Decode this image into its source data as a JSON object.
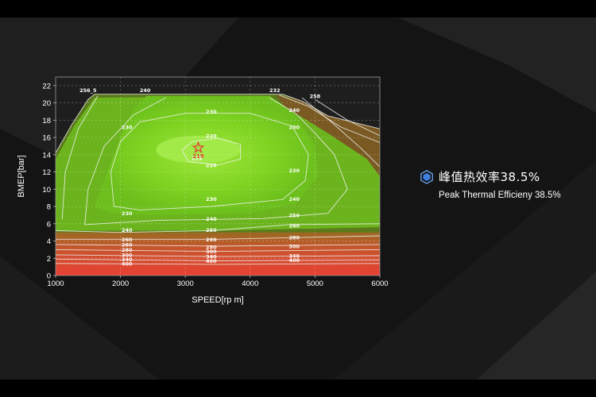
{
  "caption": {
    "title_zh": "峰值热效率38.5%",
    "title_en": "Peak Thermal Efficieny 38.5%",
    "icon": "hexagon-icon",
    "icon_color": "#3f7fe0"
  },
  "chart_data": {
    "type": "contour",
    "xlabel": "SPEED[rp m]",
    "ylabel": "BMEP[bar]",
    "xlim": [
      1000,
      6000
    ],
    "ylim": [
      0,
      23
    ],
    "x_ticks": [
      1000,
      2000,
      3000,
      4000,
      5000,
      6000
    ],
    "y_ticks": [
      0,
      2,
      4,
      6,
      8,
      10,
      12,
      14,
      16,
      18,
      20,
      22
    ],
    "grid": true,
    "peak": {
      "speed": 3200,
      "bmep": 14.8,
      "value": "219",
      "marker": "star-icon"
    },
    "contour_values": [
      219,
      220,
      230,
      240,
      250,
      256,
      258,
      260,
      280,
      300,
      340,
      400
    ],
    "contour_labels": [
      {
        "text": "256_5",
        "x": 1500,
        "y": 21.5
      },
      {
        "text": "240",
        "x": 2380,
        "y": 21.5
      },
      {
        "text": "232",
        "x": 4380,
        "y": 21.5
      },
      {
        "text": "258",
        "x": 5000,
        "y": 20.8
      },
      {
        "text": "240",
        "x": 4680,
        "y": 19.2
      },
      {
        "text": "230",
        "x": 2100,
        "y": 17.2
      },
      {
        "text": "230",
        "x": 3400,
        "y": 19.0
      },
      {
        "text": "230",
        "x": 4680,
        "y": 17.2
      },
      {
        "text": "220",
        "x": 3400,
        "y": 16.2
      },
      {
        "text": "219",
        "x": 3180,
        "y": 13.6
      },
      {
        "text": "220",
        "x": 3400,
        "y": 12.8
      },
      {
        "text": "230",
        "x": 4680,
        "y": 12.2
      },
      {
        "text": "230",
        "x": 3400,
        "y": 8.9
      },
      {
        "text": "240",
        "x": 4680,
        "y": 8.9
      },
      {
        "text": "230",
        "x": 2100,
        "y": 7.2
      },
      {
        "text": "240",
        "x": 3400,
        "y": 6.6
      },
      {
        "text": "250",
        "x": 4680,
        "y": 7.0
      },
      {
        "text": "240",
        "x": 2100,
        "y": 5.3
      },
      {
        "text": "250",
        "x": 3400,
        "y": 5.3
      },
      {
        "text": "260",
        "x": 4680,
        "y": 5.8
      },
      {
        "text": "260",
        "x": 2100,
        "y": 4.2
      },
      {
        "text": "260",
        "x": 3400,
        "y": 4.2
      },
      {
        "text": "280",
        "x": 4680,
        "y": 4.4
      },
      {
        "text": "260",
        "x": 2100,
        "y": 3.6
      },
      {
        "text": "280",
        "x": 3400,
        "y": 3.3
      },
      {
        "text": "300",
        "x": 4680,
        "y": 3.4
      },
      {
        "text": "280",
        "x": 2100,
        "y": 3.0
      },
      {
        "text": "300",
        "x": 3400,
        "y": 2.8
      },
      {
        "text": "340",
        "x": 4680,
        "y": 2.3
      },
      {
        "text": "300",
        "x": 2100,
        "y": 2.4
      },
      {
        "text": "340",
        "x": 3400,
        "y": 2.2
      },
      {
        "text": "400",
        "x": 4680,
        "y": 1.8
      },
      {
        "text": "340",
        "x": 2100,
        "y": 1.9
      },
      {
        "text": "400",
        "x": 3400,
        "y": 1.7
      },
      {
        "text": "400",
        "x": 2100,
        "y": 1.4
      }
    ],
    "colors": {
      "best": "#7ed321",
      "good": "#6bbf1f",
      "mid": "#4f8a1a",
      "warm": "#8a5a1c",
      "hot": "#e0483a"
    }
  }
}
